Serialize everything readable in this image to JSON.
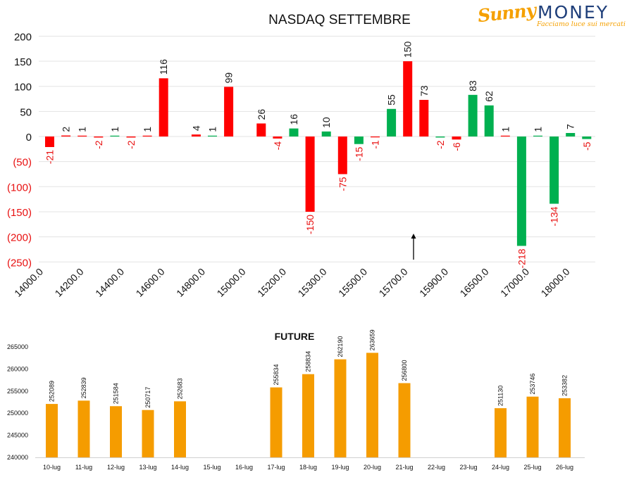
{
  "logo": {
    "brand_script": "Sunny",
    "brand_word": "MONEY",
    "tagline": "Facciamo luce sui mercati"
  },
  "colors": {
    "call_bar": "#ff0000",
    "put_bar": "#00b050",
    "future_bar": "#f59c00",
    "positive_label": "#1a1a1a",
    "negative_label": "#e81010"
  },
  "chart_data": [
    {
      "type": "bar",
      "title": "NASDAQ SETTEMBRE",
      "ylim": [
        -250,
        200
      ],
      "yticks": [
        "200",
        "150",
        "100",
        "50",
        "0",
        "(50)",
        "(100)",
        "(150)",
        "(200)",
        "(250)"
      ],
      "ytick_values": [
        200,
        150,
        100,
        50,
        0,
        -50,
        -100,
        -150,
        -200,
        -250
      ],
      "xtick_labels": [
        "14000.0",
        "14200.0",
        "14400.0",
        "14600.0",
        "14800.0",
        "15000.0",
        "15200.0",
        "15300.0",
        "15500.0",
        "15700.0",
        "15900.0",
        "16500.0",
        "17000.0",
        "18000.0"
      ],
      "grid": true,
      "bars": [
        {
          "slot": 0,
          "color": "red",
          "value": -21
        },
        {
          "slot": 1,
          "color": "red",
          "value": 2
        },
        {
          "slot": 2,
          "color": "red",
          "value": 1
        },
        {
          "slot": 3,
          "color": "red",
          "value": -2
        },
        {
          "slot": 4,
          "color": "green",
          "value": 1
        },
        {
          "slot": 5,
          "color": "red",
          "value": -2
        },
        {
          "slot": 6,
          "color": "red",
          "value": 1
        },
        {
          "slot": 7,
          "color": "red",
          "value": 116
        },
        {
          "slot": 9,
          "color": "red",
          "value": 4
        },
        {
          "slot": 10,
          "color": "green",
          "value": 1
        },
        {
          "slot": 11,
          "color": "red",
          "value": 99
        },
        {
          "slot": 13,
          "color": "red",
          "value": 26
        },
        {
          "slot": 14,
          "color": "red",
          "value": -4
        },
        {
          "slot": 15,
          "color": "green",
          "value": 16
        },
        {
          "slot": 16,
          "color": "red",
          "value": -150
        },
        {
          "slot": 17,
          "color": "green",
          "value": 10
        },
        {
          "slot": 18,
          "color": "red",
          "value": -75
        },
        {
          "slot": 19,
          "color": "green",
          "value": -15
        },
        {
          "slot": 20,
          "color": "red",
          "value": -1
        },
        {
          "slot": 21,
          "color": "green",
          "value": 55
        },
        {
          "slot": 22,
          "color": "red",
          "value": 150
        },
        {
          "slot": 23,
          "color": "red",
          "value": 73
        },
        {
          "slot": 24,
          "color": "green",
          "value": -2
        },
        {
          "slot": 25,
          "color": "red",
          "value": -6
        },
        {
          "slot": 26,
          "color": "green",
          "value": 83
        },
        {
          "slot": 27,
          "color": "green",
          "value": 62
        },
        {
          "slot": 28,
          "color": "red",
          "value": 1
        },
        {
          "slot": 29,
          "color": "green",
          "value": -218
        },
        {
          "slot": 30,
          "color": "green",
          "value": 1
        },
        {
          "slot": 31,
          "color": "green",
          "value": -134
        },
        {
          "slot": 32,
          "color": "green",
          "value": 7
        },
        {
          "slot": 33,
          "color": "green",
          "value": -5
        }
      ],
      "annotation": {
        "type": "arrow",
        "direction": "up"
      }
    },
    {
      "type": "bar",
      "title": "FUTURE",
      "ylim": [
        240000,
        265000
      ],
      "yticks": [
        "265000",
        "260000",
        "255000",
        "250000",
        "245000",
        "240000"
      ],
      "ytick_values": [
        265000,
        260000,
        255000,
        250000,
        245000,
        240000
      ],
      "categories": [
        "10-lug",
        "11-lug",
        "12-lug",
        "13-lug",
        "14-lug",
        "15-lug",
        "16-lug",
        "17-lug",
        "18-lug",
        "19-lug",
        "20-lug",
        "21-lug",
        "22-lug",
        "23-lug",
        "24-lug",
        "25-lug",
        "26-lug"
      ],
      "values": [
        252089,
        252839,
        251584,
        250717,
        252683,
        null,
        null,
        255834,
        258834,
        262190,
        263659,
        256800,
        null,
        null,
        251130,
        253746,
        253382
      ],
      "grid": false
    }
  ]
}
